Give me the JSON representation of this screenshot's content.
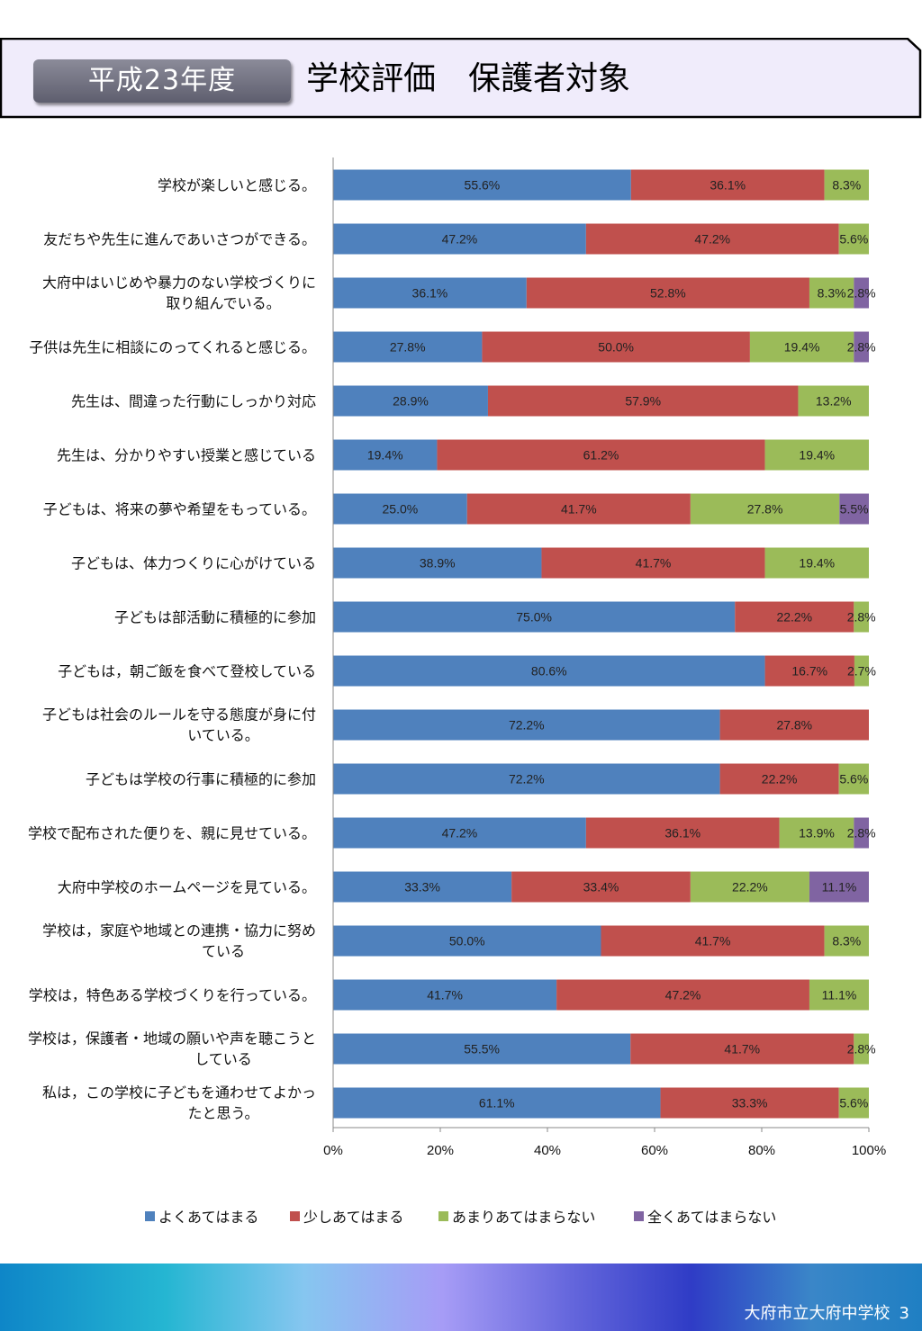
{
  "header": {
    "year_badge": "平成23年度",
    "title": "学校評価　保護者対象"
  },
  "footer": {
    "school": "大府市立大府中学校",
    "page_number": "3"
  },
  "colors": {
    "header_bg": "#f0ecfb",
    "series": [
      "#4f81bd",
      "#c0504d",
      "#9bbb59",
      "#8064a2"
    ],
    "footer_text": "#ffffff"
  },
  "chart_data": {
    "type": "bar",
    "orientation": "horizontal",
    "stacked": "percent",
    "categories": [
      "学校が楽しいと感じる。",
      "友だちや先生に進んであいさつができる。",
      "大府中はいじめや暴力のない学校づくりに取り組んでいる。",
      "子供は先生に相談にのってくれると感じる。",
      "先生は、間違った行動にしっかり対応",
      "先生は、分かりやすい授業と感じている",
      "子どもは、将来の夢や希望をもっている。",
      "子どもは、体力つくりに心がけている",
      "子どもは部活動に積極的に参加",
      "子どもは，朝ご飯を食べて登校している",
      "子どもは社会のルールを守る態度が身に付いている。",
      "子どもは学校の行事に積極的に参加",
      "学校で配布された便りを、親に見せている。",
      "大府中学校のホームページを見ている。",
      "学校は，家庭や地域との連携・協力に努めている",
      "学校は，特色ある学校づくりを行っている。",
      "学校は，保護者・地域の願いや声を聴こうとしている",
      "私は，この学校に子どもを通わせてよかったと思う。"
    ],
    "category_lines": [
      [
        "学校が楽しいと感じる。"
      ],
      [
        "友だちや先生に進んであいさつができる。"
      ],
      [
        "大府中はいじめや暴力のない学校づくりに",
        "取り組んでいる。"
      ],
      [
        "子供は先生に相談にのってくれると感じる。"
      ],
      [
        "先生は、間違った行動にしっかり対応"
      ],
      [
        "先生は、分かりやすい授業と感じている"
      ],
      [
        "子どもは、将来の夢や希望をもっている。"
      ],
      [
        "子どもは、体力つくりに心がけている"
      ],
      [
        "子どもは部活動に積極的に参加"
      ],
      [
        "子どもは，朝ご飯を食べて登校している"
      ],
      [
        "子どもは社会のルールを守る態度が身に付",
        "いている。"
      ],
      [
        "子どもは学校の行事に積極的に参加"
      ],
      [
        "学校で配布された便りを、親に見せている。"
      ],
      [
        "大府中学校のホームページを見ている。"
      ],
      [
        "学校は，家庭や地域との連携・協力に努め",
        "ている"
      ],
      [
        "学校は，特色ある学校づくりを行っている。"
      ],
      [
        "学校は，保護者・地域の願いや声を聴こうと",
        "している"
      ],
      [
        "私は，この学校に子どもを通わせてよかっ",
        "たと思う。"
      ]
    ],
    "series": [
      {
        "name": "よくあてはまる",
        "values": [
          55.6,
          47.2,
          36.1,
          27.8,
          28.9,
          19.4,
          25.0,
          38.9,
          75.0,
          80.6,
          72.2,
          72.2,
          47.2,
          33.3,
          50.0,
          41.7,
          55.5,
          61.1
        ]
      },
      {
        "name": "少しあてはまる",
        "values": [
          36.1,
          47.2,
          52.8,
          50.0,
          57.9,
          61.2,
          41.7,
          41.7,
          22.2,
          16.7,
          27.8,
          22.2,
          36.1,
          33.4,
          41.7,
          47.2,
          41.7,
          33.3
        ]
      },
      {
        "name": "あまりあてはまらない",
        "values": [
          8.3,
          5.6,
          8.3,
          19.4,
          13.2,
          19.4,
          27.8,
          19.4,
          2.8,
          2.7,
          0,
          5.6,
          13.9,
          22.2,
          8.3,
          11.1,
          2.8,
          5.6
        ]
      },
      {
        "name": "全くあてはまらない",
        "values": [
          0,
          0,
          2.8,
          2.8,
          0,
          0,
          5.5,
          0,
          0,
          0,
          0,
          0,
          2.8,
          11.1,
          0,
          0,
          0,
          0
        ]
      }
    ],
    "data_labels": [
      [
        "55.6%",
        "36.1%",
        "8.3%",
        ""
      ],
      [
        "47.2%",
        "47.2%",
        "5.6%",
        ""
      ],
      [
        "36.1%",
        "52.8%",
        "8.3%",
        "2.8%"
      ],
      [
        "27.8%",
        "50.0%",
        "19.4%",
        "2.8%"
      ],
      [
        "28.9%",
        "57.9%",
        "13.2%",
        ""
      ],
      [
        "19.4%",
        "61.2%",
        "19.4%",
        ""
      ],
      [
        "25.0%",
        "41.7%",
        "27.8%",
        "5.5%"
      ],
      [
        "38.9%",
        "41.7%",
        "19.4%",
        ""
      ],
      [
        "75.0%",
        "22.2%",
        "2.8%",
        ""
      ],
      [
        "80.6%",
        "16.7%",
        "2.7%",
        ""
      ],
      [
        "72.2%",
        "27.8%",
        "",
        ""
      ],
      [
        "72.2%",
        "22.2%",
        "5.6%",
        ""
      ],
      [
        "47.2%",
        "36.1%",
        "13.9%",
        "2.8%"
      ],
      [
        "33.3%",
        "33.4%",
        "22.2%",
        "11.1%"
      ],
      [
        "50.0%",
        "41.7%",
        "8.3%",
        ""
      ],
      [
        "41.7%",
        "47.2%",
        "11.1%",
        ""
      ],
      [
        "55.5%",
        "41.7%",
        "2.8%",
        ""
      ],
      [
        "61.1%",
        "33.3%",
        "5.6%",
        ""
      ]
    ],
    "x_ticks": [
      0,
      20,
      40,
      60,
      80,
      100
    ],
    "x_tick_labels": [
      "0%",
      "20%",
      "40%",
      "60%",
      "80%",
      "100%"
    ],
    "xlim": [
      0,
      100
    ],
    "grid": false,
    "legend_position": "bottom"
  }
}
